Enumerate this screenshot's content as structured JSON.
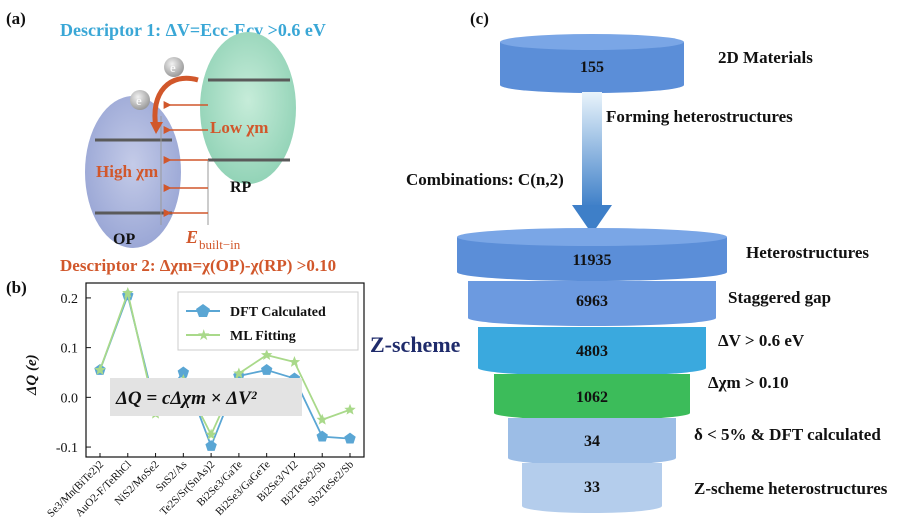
{
  "panels": {
    "a": "(a)",
    "b": "(b)",
    "c": "(c)"
  },
  "panel_a": {
    "descriptor1": "Descriptor 1: ΔV=Ecc-Ecv >0.6 eV",
    "descriptor2": "Descriptor 2:  Δχm=χ(OP)-χ(RP) >0.10",
    "low_chi": "Low χm",
    "high_chi": "High χm",
    "rp_label": "RP",
    "op_label": "OP",
    "e_label": "e",
    "e_built_in": "E",
    "built_in_sub": "built−in",
    "colors": {
      "op": "#a9b4dc",
      "rp": "#9dd6bf",
      "arrow": "#d1572b",
      "descriptor1": "#3aa7d6"
    }
  },
  "panel_b": {
    "equation": "ΔQ = cΔχm × ΔV²",
    "chart_data": {
      "type": "line",
      "ylabel": "ΔQ (e)",
      "ylim": [
        -0.12,
        0.23
      ],
      "yticks": [
        -0.1,
        0.0,
        0.1,
        0.2
      ],
      "ytick_labels": [
        "-0.1",
        "0.0",
        "0.1",
        "0.2"
      ],
      "categories": [
        "Se3/Mn(BiTe2)2",
        "AuO2-F/TeRhCl",
        "NiS2/MoSe2",
        "SnS2/As",
        "Te2S/Sr(SnAs)2",
        "Bi2Se3/GaTe",
        "Bi2Se3/GaGeTe",
        "Bi2Se3/VI2",
        "Bi2TeSe2/Sb",
        "Sb2TeSe2/Sb"
      ],
      "series": [
        {
          "name": "DFT Calculated",
          "color": "#5aa6d4",
          "values": [
            0.055,
            0.205,
            -0.022,
            0.05,
            -0.098,
            0.043,
            0.055,
            0.038,
            -0.079,
            -0.083
          ]
        },
        {
          "name": "ML Fitting",
          "color": "#a9d98a",
          "values": [
            0.055,
            0.21,
            -0.033,
            0.035,
            -0.075,
            0.048,
            0.085,
            0.071,
            -0.045,
            -0.025
          ]
        }
      ],
      "legend_position": "top-right"
    }
  },
  "panel_c": {
    "forming": "Forming heterostructures",
    "combinations": "Combinations: C(n,2)",
    "zscheme": "Z-scheme",
    "tiers": [
      {
        "value": "155",
        "label": "2D Materials",
        "color": "#5b8ed8"
      },
      {
        "value": "11935",
        "label": "Heterostructures",
        "color": "#5b8ed8"
      },
      {
        "value": "6963",
        "label": "Staggered gap",
        "color": "#6c9ae0"
      },
      {
        "value": "4803",
        "label": "ΔV > 0.6 eV",
        "color": "#3aa9de"
      },
      {
        "value": "1062",
        "label": "Δχm > 0.10",
        "color": "#3cbc5a"
      },
      {
        "value": "34",
        "label": "δ < 5% & DFT calculated",
        "color": "#9cbde6"
      },
      {
        "value": "33",
        "label": "Z-scheme heterostructures",
        "color": "#b4cdec"
      }
    ]
  }
}
